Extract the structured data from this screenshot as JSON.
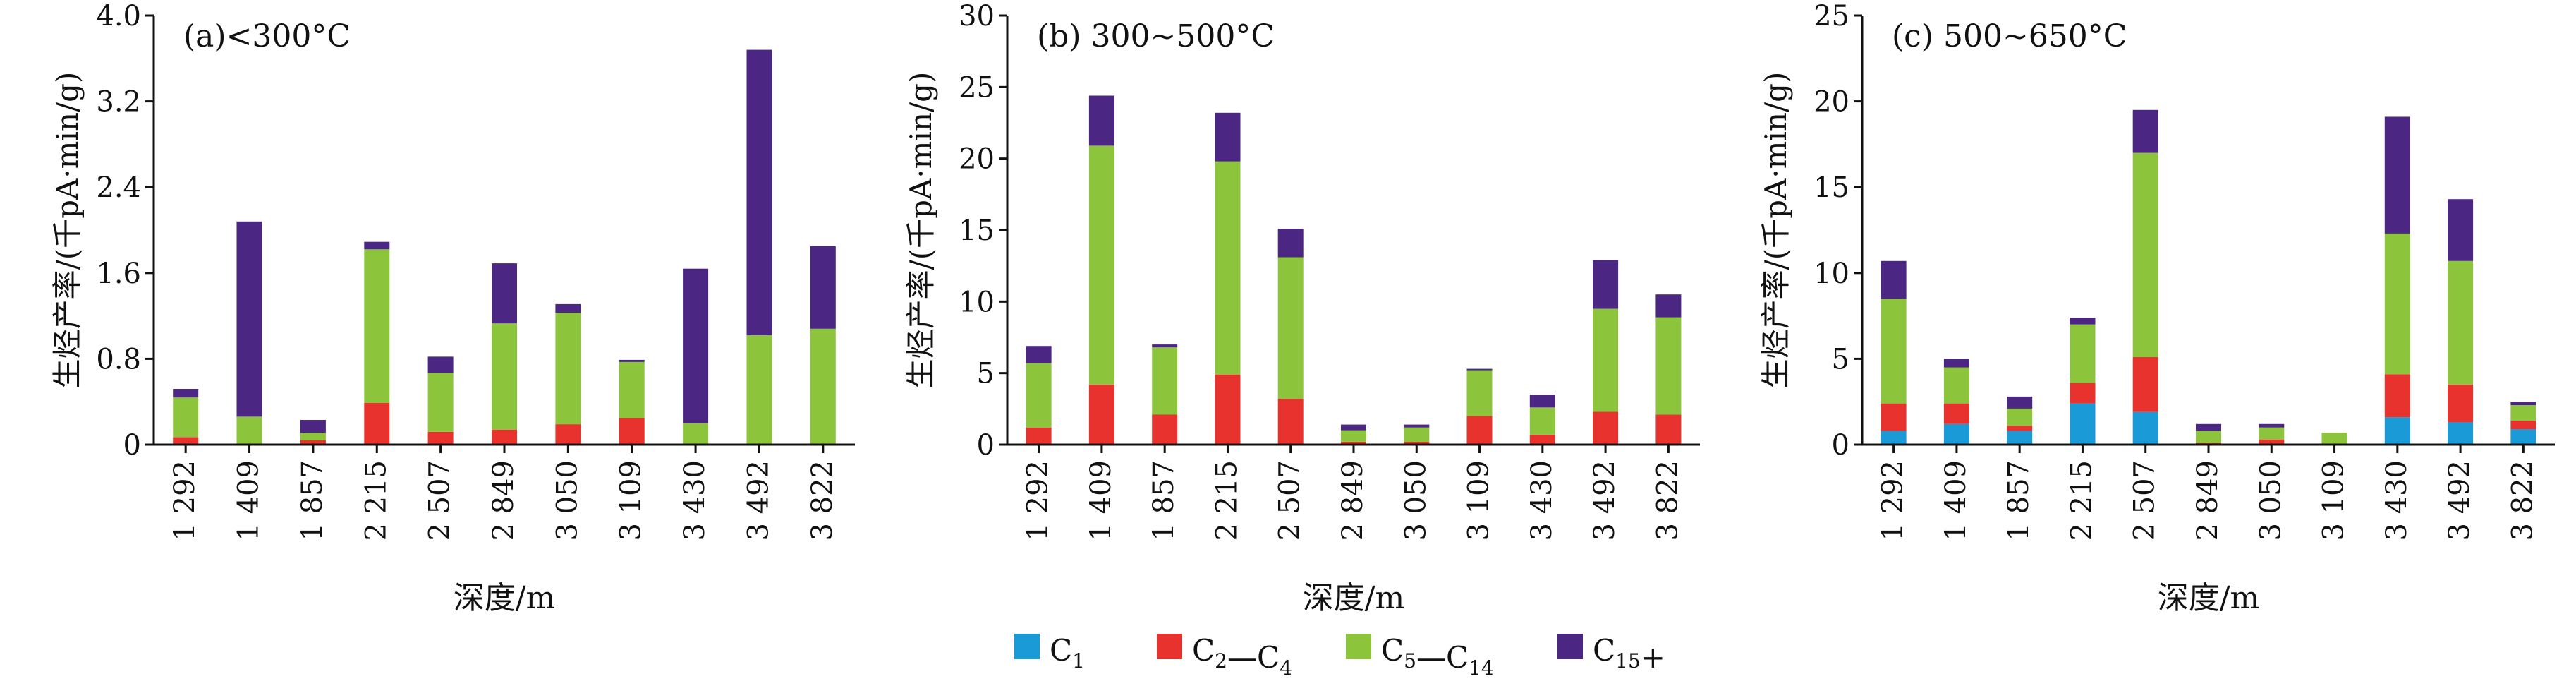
{
  "colors": {
    "C1": "#1a9ad6",
    "C2_C4": "#e8322d",
    "C5_C14": "#8cc43c",
    "C15plus": "#4b2683",
    "axis": "#111111"
  },
  "legend": [
    {
      "key": "C1",
      "main": "C",
      "sub": "1",
      "mid": "",
      "sub2": "",
      "tail": ""
    },
    {
      "key": "C2_C4",
      "main": "C",
      "sub": "2",
      "mid": "—C",
      "sub2": "4",
      "tail": ""
    },
    {
      "key": "C5_C14",
      "main": "C",
      "sub": "5",
      "mid": "—C",
      "sub2": "14",
      "tail": ""
    },
    {
      "key": "C15plus",
      "main": "C",
      "sub": "15",
      "mid": "",
      "sub2": "",
      "tail": "+"
    }
  ],
  "chart_data": [
    {
      "type": "bar",
      "stacked": true,
      "title": "(a)<300°C",
      "xlabel": "深度/m",
      "ylabel": "生烃产率/(千pA·min/g)",
      "ylim": [
        0,
        4.0
      ],
      "yticks": [
        0,
        0.8,
        1.6,
        2.4,
        3.2,
        4.0
      ],
      "ytick_labels": [
        "0",
        "0.8",
        "1.6",
        "2.4",
        "3.2",
        "4.0"
      ],
      "categories": [
        "1 292",
        "1 409",
        "1 857",
        "2 215",
        "2 507",
        "2 849",
        "3 050",
        "3 109",
        "3 430",
        "3 492",
        "3 822"
      ],
      "series": [
        {
          "name": "C1",
          "color": "#1a9ad6",
          "values": [
            0,
            0,
            0,
            0,
            0,
            0,
            0,
            0,
            0,
            0,
            0
          ]
        },
        {
          "name": "C2—C4",
          "color": "#e8322d",
          "values": [
            0.07,
            0,
            0.04,
            0.39,
            0.12,
            0.14,
            0.19,
            0.25,
            0,
            0,
            0
          ]
        },
        {
          "name": "C5—C14",
          "color": "#8cc43c",
          "values": [
            0.37,
            0.26,
            0.07,
            1.43,
            0.55,
            0.99,
            1.04,
            0.52,
            0.2,
            1.02,
            1.08
          ]
        },
        {
          "name": "C15+",
          "color": "#4b2683",
          "values": [
            0.08,
            1.82,
            0.12,
            0.07,
            0.15,
            0.56,
            0.08,
            0.02,
            1.44,
            2.66,
            0.77
          ]
        }
      ]
    },
    {
      "type": "bar",
      "stacked": true,
      "title": "(b) 300~500°C",
      "xlabel": "深度/m",
      "ylabel": "生烃产率/(千pA·min/g)",
      "ylim": [
        0,
        30
      ],
      "yticks": [
        0,
        5,
        10,
        15,
        20,
        25,
        30
      ],
      "ytick_labels": [
        "0",
        "5",
        "10",
        "15",
        "20",
        "25",
        "30"
      ],
      "categories": [
        "1 292",
        "1 409",
        "1 857",
        "2 215",
        "2 507",
        "2 849",
        "3 050",
        "3 109",
        "3 430",
        "3 492",
        "3 822"
      ],
      "series": [
        {
          "name": "C1",
          "color": "#1a9ad6",
          "values": [
            0,
            0,
            0,
            0,
            0,
            0,
            0,
            0,
            0,
            0,
            0
          ]
        },
        {
          "name": "C2—C4",
          "color": "#e8322d",
          "values": [
            1.2,
            4.2,
            2.1,
            4.9,
            3.2,
            0.2,
            0.2,
            2.0,
            0.7,
            2.3,
            2.1
          ]
        },
        {
          "name": "C5—C14",
          "color": "#8cc43c",
          "values": [
            4.5,
            16.7,
            4.7,
            14.9,
            9.9,
            0.8,
            1.0,
            3.2,
            1.9,
            7.2,
            6.8
          ]
        },
        {
          "name": "C15+",
          "color": "#4b2683",
          "values": [
            1.2,
            3.5,
            0.2,
            3.4,
            2.0,
            0.4,
            0.2,
            0.1,
            0.9,
            3.4,
            1.6
          ]
        }
      ]
    },
    {
      "type": "bar",
      "stacked": true,
      "title": "(c) 500~650°C",
      "xlabel": "深度/m",
      "ylabel": "生烃产率/(千pA·min/g)",
      "ylim": [
        0,
        25
      ],
      "yticks": [
        0,
        5,
        10,
        15,
        20,
        25
      ],
      "ytick_labels": [
        "0",
        "5",
        "10",
        "15",
        "20",
        "25"
      ],
      "categories": [
        "1 292",
        "1 409",
        "1 857",
        "2 215",
        "2 507",
        "2 849",
        "3 050",
        "3 109",
        "3 430",
        "3 492",
        "3 822"
      ],
      "series": [
        {
          "name": "C1",
          "color": "#1a9ad6",
          "values": [
            0.8,
            1.2,
            0.8,
            2.4,
            1.9,
            0,
            0,
            0,
            1.6,
            1.3,
            0.9
          ]
        },
        {
          "name": "C2—C4",
          "color": "#e8322d",
          "values": [
            1.6,
            1.2,
            0.3,
            1.2,
            3.2,
            0.1,
            0.3,
            0,
            2.5,
            2.2,
            0.5
          ]
        },
        {
          "name": "C5—C14",
          "color": "#8cc43c",
          "values": [
            6.1,
            2.1,
            1.0,
            3.4,
            11.9,
            0.7,
            0.7,
            0.7,
            8.2,
            7.2,
            0.9
          ]
        },
        {
          "name": "C15+",
          "color": "#4b2683",
          "values": [
            2.2,
            0.5,
            0.7,
            0.4,
            2.5,
            0.4,
            0.2,
            0,
            6.8,
            3.6,
            0.2
          ]
        }
      ]
    }
  ]
}
